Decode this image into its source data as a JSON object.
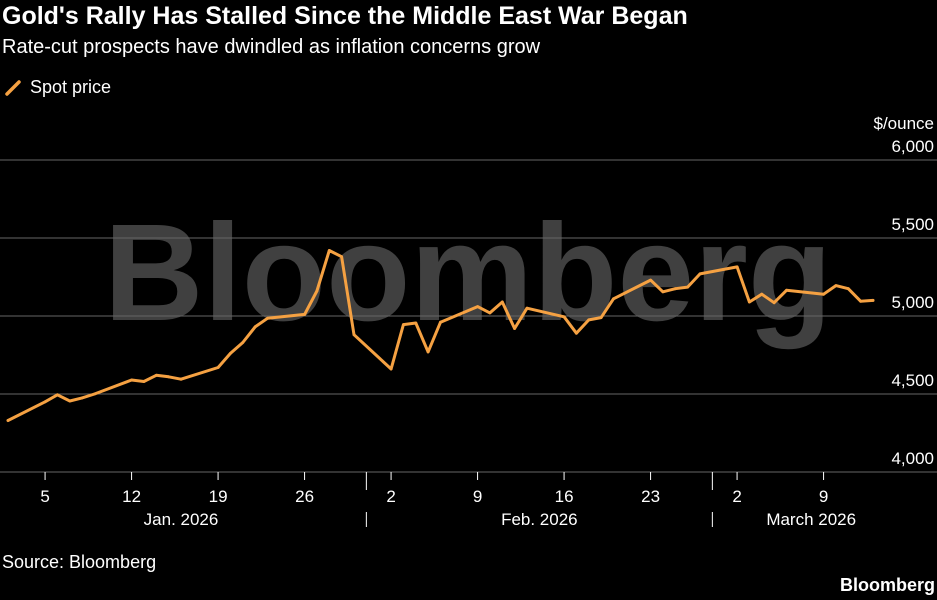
{
  "header": {
    "title": "Gold's Rally Has Stalled Since the Middle East War Began",
    "subtitle": "Rate-cut prospects have dwindled as inflation concerns grow"
  },
  "footer": {
    "source": "Source: Bloomberg",
    "brand": "Bloomberg"
  },
  "watermark": "Bloomberg",
  "colors": {
    "background": "#000000",
    "series": "#F5A142",
    "grid": "#666666",
    "text": "#FFFFFF"
  },
  "chart_data": {
    "type": "line",
    "ylabel": "$/ounce",
    "ylim": [
      4000,
      6000
    ],
    "yticks": [
      4000,
      4500,
      5000,
      5500,
      6000
    ],
    "ytick_labels": [
      "4,000",
      "4,500",
      "5,000",
      "5,500",
      "6,000"
    ],
    "xlim": [
      "2026-01-02",
      "2026-03-13"
    ],
    "xticks": [
      {
        "date": "2026-01-05",
        "label": "5"
      },
      {
        "date": "2026-01-12",
        "label": "12"
      },
      {
        "date": "2026-01-19",
        "label": "19"
      },
      {
        "date": "2026-01-26",
        "label": "26"
      },
      {
        "date": "2026-02-02",
        "label": "2"
      },
      {
        "date": "2026-02-09",
        "label": "9"
      },
      {
        "date": "2026-02-16",
        "label": "16"
      },
      {
        "date": "2026-02-23",
        "label": "23"
      },
      {
        "date": "2026-03-02",
        "label": "2"
      },
      {
        "date": "2026-03-09",
        "label": "9"
      }
    ],
    "month_labels": [
      {
        "label": "Jan. 2026",
        "center": "2026-01-16"
      },
      {
        "label": "Feb. 2026",
        "center": "2026-02-14"
      },
      {
        "label": "March 2026",
        "center": "2026-03-08"
      }
    ],
    "month_separators": [
      "2026-01-31",
      "2026-02-28"
    ],
    "legend": "Spot price",
    "legend_position": "top-left",
    "grid": "horizontal",
    "series": [
      {
        "name": "Spot price",
        "points": [
          [
            "2026-01-02",
            4330
          ],
          [
            "2026-01-05",
            4450
          ],
          [
            "2026-01-06",
            4495
          ],
          [
            "2026-01-07",
            4455
          ],
          [
            "2026-01-08",
            4475
          ],
          [
            "2026-01-09",
            4500
          ],
          [
            "2026-01-12",
            4590
          ],
          [
            "2026-01-13",
            4580
          ],
          [
            "2026-01-14",
            4620
          ],
          [
            "2026-01-15",
            4610
          ],
          [
            "2026-01-16",
            4595
          ],
          [
            "2026-01-19",
            4670
          ],
          [
            "2026-01-20",
            4760
          ],
          [
            "2026-01-21",
            4830
          ],
          [
            "2026-01-22",
            4930
          ],
          [
            "2026-01-23",
            4985
          ],
          [
            "2026-01-26",
            5010
          ],
          [
            "2026-01-27",
            5160
          ],
          [
            "2026-01-28",
            5420
          ],
          [
            "2026-01-29",
            5380
          ],
          [
            "2026-01-30",
            4880
          ],
          [
            "2026-02-02",
            4660
          ],
          [
            "2026-02-03",
            4945
          ],
          [
            "2026-02-04",
            4955
          ],
          [
            "2026-02-05",
            4770
          ],
          [
            "2026-02-06",
            4960
          ],
          [
            "2026-02-09",
            5060
          ],
          [
            "2026-02-10",
            5020
          ],
          [
            "2026-02-11",
            5090
          ],
          [
            "2026-02-12",
            4920
          ],
          [
            "2026-02-13",
            5050
          ],
          [
            "2026-02-16",
            4995
          ],
          [
            "2026-02-17",
            4890
          ],
          [
            "2026-02-18",
            4975
          ],
          [
            "2026-02-19",
            4990
          ],
          [
            "2026-02-20",
            5110
          ],
          [
            "2026-02-23",
            5230
          ],
          [
            "2026-02-24",
            5155
          ],
          [
            "2026-02-25",
            5175
          ],
          [
            "2026-02-26",
            5185
          ],
          [
            "2026-02-27",
            5270
          ],
          [
            "2026-03-02",
            5315
          ],
          [
            "2026-03-03",
            5090
          ],
          [
            "2026-03-04",
            5140
          ],
          [
            "2026-03-05",
            5085
          ],
          [
            "2026-03-06",
            5165
          ],
          [
            "2026-03-09",
            5140
          ],
          [
            "2026-03-10",
            5195
          ],
          [
            "2026-03-11",
            5175
          ],
          [
            "2026-03-12",
            5095
          ],
          [
            "2026-03-13",
            5100
          ]
        ]
      }
    ]
  }
}
